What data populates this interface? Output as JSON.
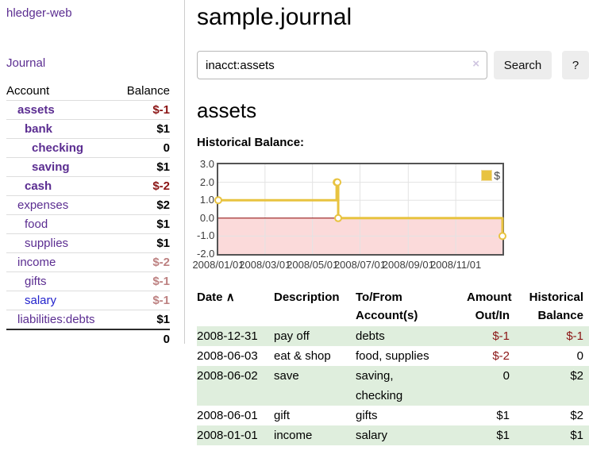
{
  "brand": {
    "title": "hledger-web"
  },
  "nav": {
    "journal": "Journal"
  },
  "sidebar": {
    "header": {
      "account": "Account",
      "balance": "Balance"
    },
    "accounts": [
      {
        "name": "assets",
        "balance": "$-1"
      },
      {
        "name": "bank",
        "balance": "$1"
      },
      {
        "name": "checking",
        "balance": "0"
      },
      {
        "name": "saving",
        "balance": "$1"
      },
      {
        "name": "cash",
        "balance": "$-2"
      },
      {
        "name": "expenses",
        "balance": "$2"
      },
      {
        "name": "food",
        "balance": "$1"
      },
      {
        "name": "supplies",
        "balance": "$1"
      },
      {
        "name": "income",
        "balance": "$-2"
      },
      {
        "name": "gifts",
        "balance": "$-1"
      },
      {
        "name": "salary",
        "balance": "$-1"
      },
      {
        "name": "liabilities:debts",
        "balance": "$1"
      }
    ],
    "total": "0"
  },
  "page": {
    "title": "sample.journal",
    "account_heading": "assets",
    "chart_label": "Historical Balance:"
  },
  "search": {
    "value": "inacct:assets",
    "clear": "×",
    "submit": "Search",
    "help": "?"
  },
  "chart_data": {
    "type": "line",
    "title": "Historical Balance:",
    "x_start": "2008-01-01",
    "x_end": "2008-12-31",
    "ylim": [
      -2,
      3
    ],
    "y_ticks": [
      "3.0",
      "2.0",
      "1.0",
      "0.0",
      "-1.0",
      "-2.0"
    ],
    "x_ticks": [
      "2008/01/01",
      "2008/03/01",
      "2008/05/01",
      "2008/07/01",
      "2008/09/01",
      "2008/11/01"
    ],
    "series": [
      {
        "name": "$",
        "color": "#e8c340",
        "marker_fill": "#ffffff",
        "step": true,
        "points": [
          [
            "2008-01-01",
            1
          ],
          [
            "2008-06-01",
            2
          ],
          [
            "2008-06-02",
            2
          ],
          [
            "2008-06-03",
            0
          ],
          [
            "2008-12-31",
            -1
          ]
        ]
      }
    ],
    "negative_region_color": "#fbdada",
    "zero_line_color": "#8b0000",
    "grid_color": "#e3e3e3",
    "border_color": "#545454",
    "legend_position": "top-right"
  },
  "register": {
    "headers": {
      "date": "Date",
      "sort": "∧",
      "description": "Description",
      "accounts": "To/From Account(s)",
      "amount": "Amount Out/In",
      "balance": "Historical Balance"
    },
    "rows": [
      {
        "date": "2008-12-31",
        "description": "pay off",
        "accounts": "debts",
        "amount": "$-1",
        "balance": "$-1"
      },
      {
        "date": "2008-06-03",
        "description": "eat & shop",
        "accounts": "food, supplies",
        "amount": "$-2",
        "balance": "0"
      },
      {
        "date": "2008-06-02",
        "description": "save",
        "accounts": "saving,\nchecking",
        "amount": "0",
        "balance": "$2"
      },
      {
        "date": "2008-06-01",
        "description": "gift",
        "accounts": "gifts",
        "amount": "$1",
        "balance": "$2"
      },
      {
        "date": "2008-01-01",
        "description": "income",
        "accounts": "salary",
        "amount": "$1",
        "balance": "$1"
      }
    ]
  },
  "colors": {
    "link_purple": "#5b2d91",
    "link_blue": "#2222cc",
    "negative_red": "#8b1515",
    "faded_red": "#bd8181",
    "row_green": "#dfeedd",
    "chart_gold": "#e8c340",
    "chart_negative_bg": "#fbdada",
    "zero_line": "#8b0000"
  }
}
